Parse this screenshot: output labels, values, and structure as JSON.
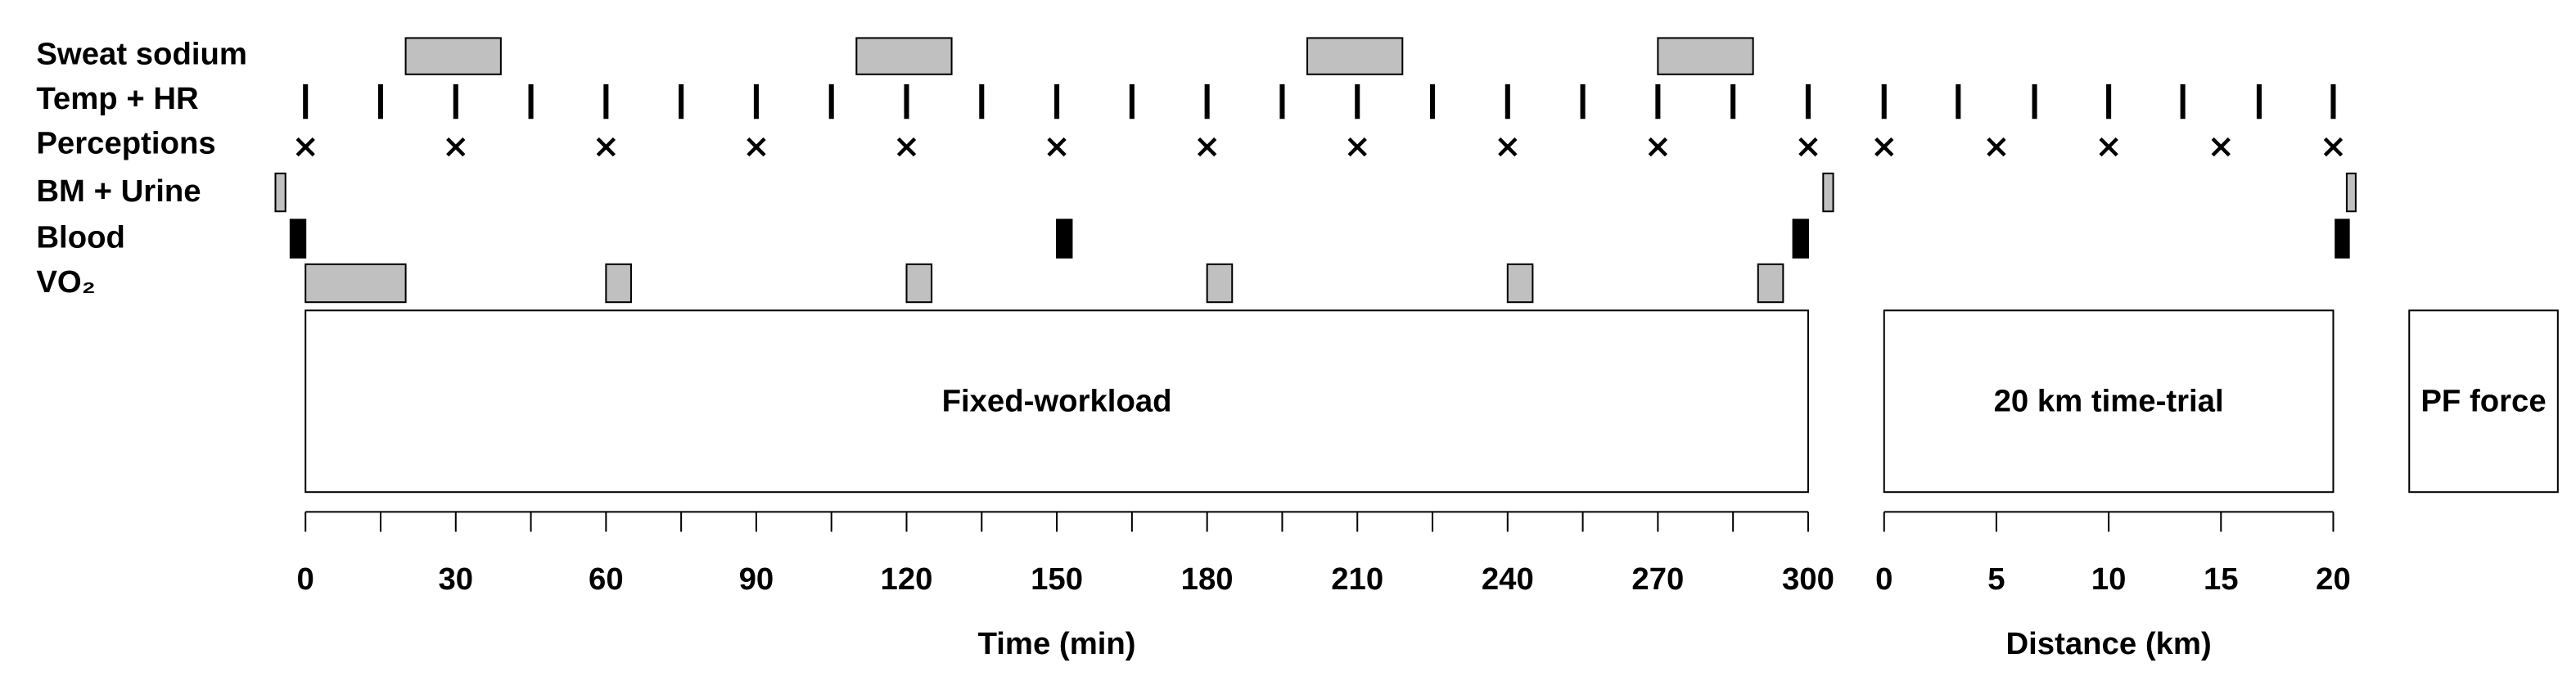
{
  "rows": [
    {
      "label": "Sweat sodium",
      "events": [
        {
          "time": [
            20,
            39
          ]
        },
        {
          "time": [
            110,
            129
          ]
        },
        {
          "time": [
            200,
            219
          ]
        },
        {
          "time": [
            270,
            289
          ]
        }
      ]
    },
    {
      "label": "Temp + HR",
      "events": [
        {
          "time": 0
        },
        {
          "time": 15
        },
        {
          "time": 30
        },
        {
          "time": 45
        },
        {
          "time": 60
        },
        {
          "time": 75
        },
        {
          "time": 90
        },
        {
          "time": 105
        },
        {
          "time": 120
        },
        {
          "time": 135
        },
        {
          "time": 150
        },
        {
          "time": 165
        },
        {
          "time": 180
        },
        {
          "time": 195
        },
        {
          "time": 210
        },
        {
          "time": 225
        },
        {
          "time": 240
        },
        {
          "time": 255
        },
        {
          "time": 270
        },
        {
          "time": 285
        },
        {
          "time": 300
        },
        {
          "distance": 0
        },
        {
          "distance": 3.3
        },
        {
          "distance": 6.7
        },
        {
          "distance": 10
        },
        {
          "distance": 13.3
        },
        {
          "distance": 16.7
        },
        {
          "distance": 20
        }
      ]
    },
    {
      "label": "Perceptions",
      "events": [
        {
          "time": 0
        },
        {
          "time": 30
        },
        {
          "time": 60
        },
        {
          "time": 90
        },
        {
          "time": 120
        },
        {
          "time": 150
        },
        {
          "time": 180
        },
        {
          "time": 210
        },
        {
          "time": 240
        },
        {
          "time": 270
        },
        {
          "time": 300
        },
        {
          "distance": 0
        },
        {
          "distance": 5
        },
        {
          "distance": 10
        },
        {
          "distance": 15
        },
        {
          "distance": 20
        }
      ]
    },
    {
      "label": "BM + Urine",
      "events": [
        {
          "time": [
            -6,
            -4
          ]
        },
        {
          "time": [
            303,
            305
          ]
        },
        {
          "distance": [
            20.6,
            21.0
          ]
        }
      ]
    },
    {
      "label": "Blood",
      "events": [
        {
          "time": [
            -3,
            0
          ]
        },
        {
          "time": [
            150,
            153
          ]
        },
        {
          "time": [
            297,
            300
          ]
        },
        {
          "distance": [
            20.1,
            20.7
          ]
        }
      ]
    },
    {
      "label": "VO₂",
      "events": [
        {
          "time": [
            0,
            20
          ]
        },
        {
          "time": [
            60,
            65
          ]
        },
        {
          "time": [
            120,
            125
          ]
        },
        {
          "time": [
            180,
            185
          ]
        },
        {
          "time": [
            240,
            245
          ]
        },
        {
          "time": [
            290,
            295
          ]
        }
      ]
    }
  ],
  "phases": [
    {
      "label": "Fixed-workload"
    },
    {
      "label": "20 km time-trial"
    },
    {
      "label": "PF force"
    }
  ],
  "axes": {
    "time": {
      "title": "Time (min)",
      "lim": [
        0,
        300
      ],
      "ticks": [
        0,
        30,
        60,
        90,
        120,
        150,
        180,
        210,
        240,
        270,
        300
      ],
      "minor_ticks": [
        15,
        45,
        75,
        105,
        135,
        165,
        195,
        225,
        255,
        285
      ]
    },
    "distance": {
      "title": "Distance (km)",
      "lim": [
        0,
        20
      ],
      "ticks": [
        0,
        5,
        10,
        15,
        20
      ]
    }
  }
}
